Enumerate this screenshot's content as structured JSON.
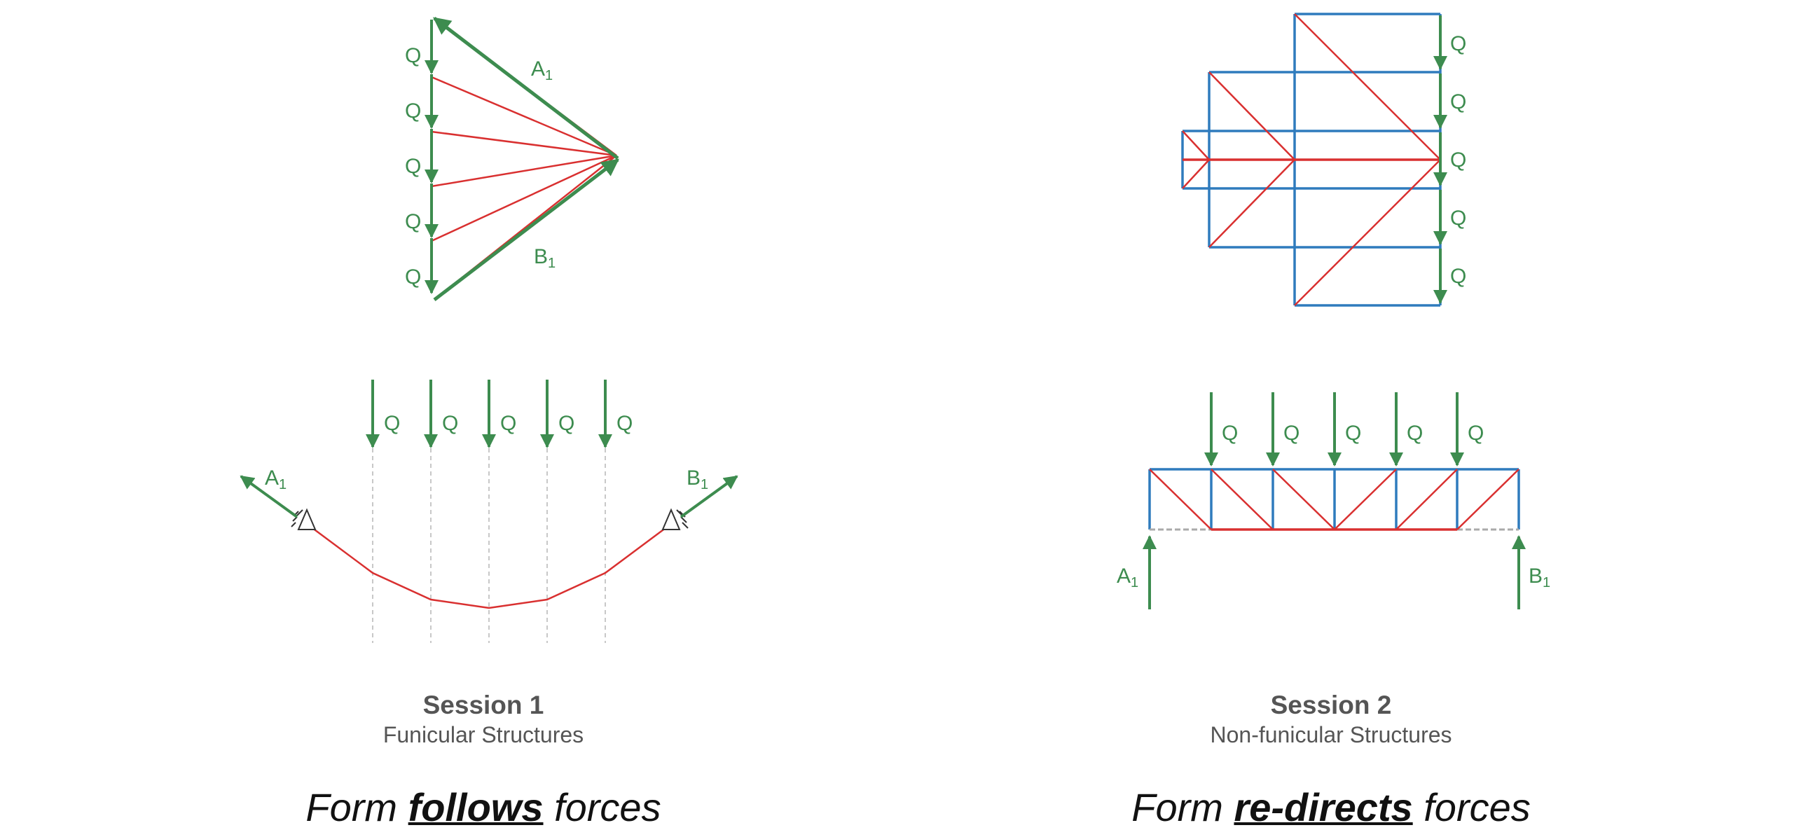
{
  "colors": {
    "force": "#3d8c4f",
    "member": "#d93030",
    "frame": "#2f7bbd",
    "guide": "#c8c8c8",
    "caption": "#555555",
    "motto": "#111111"
  },
  "labels": {
    "load": "Q",
    "reaction_a": "A",
    "reaction_b": "B",
    "reaction_index": "1"
  },
  "session1": {
    "title": "Session 1",
    "subtitle": "Funicular Structures",
    "motto_before": "Form ",
    "motto_emphasis": "follows",
    "motto_after": " forces"
  },
  "session2": {
    "title": "Session 2",
    "subtitle": "Non-funicular Structures",
    "motto_before": "Form ",
    "motto_emphasis": "re-directs",
    "motto_after": " forces"
  }
}
